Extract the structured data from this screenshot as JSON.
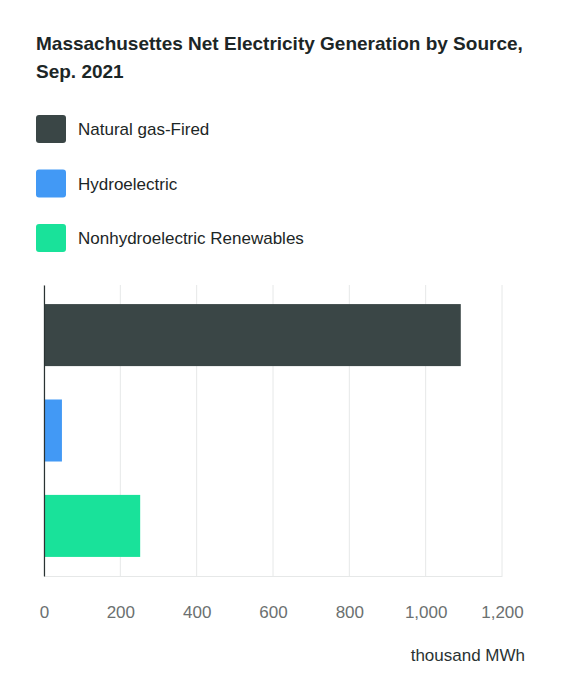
{
  "chart_data": {
    "type": "bar",
    "orientation": "horizontal",
    "title": "Massachusettes Net Electricity Generation by Source, Sep. 2021",
    "xlabel": "thousand MWh",
    "categories": [
      null,
      null,
      null
    ],
    "series": [
      {
        "name": "Natural gas-Fired",
        "color": "#3a4646",
        "values": [
          1092,
          null,
          null
        ]
      },
      {
        "name": "Hydroelectric",
        "color": "#4299f5",
        "values": [
          null,
          47,
          null
        ]
      },
      {
        "name": "Nonhydroelectric Renewables",
        "color": "#19e29a",
        "values": [
          null,
          null,
          252
        ]
      }
    ],
    "xlim": [
      0,
      1200
    ],
    "xticks": [
      0,
      200,
      400,
      600,
      800,
      {
        "value": 1000,
        "label": "1,000"
      },
      {
        "value": 1200,
        "label": "1,200"
      }
    ],
    "grid": true,
    "legend": "top",
    "tick_labels": "x"
  }
}
